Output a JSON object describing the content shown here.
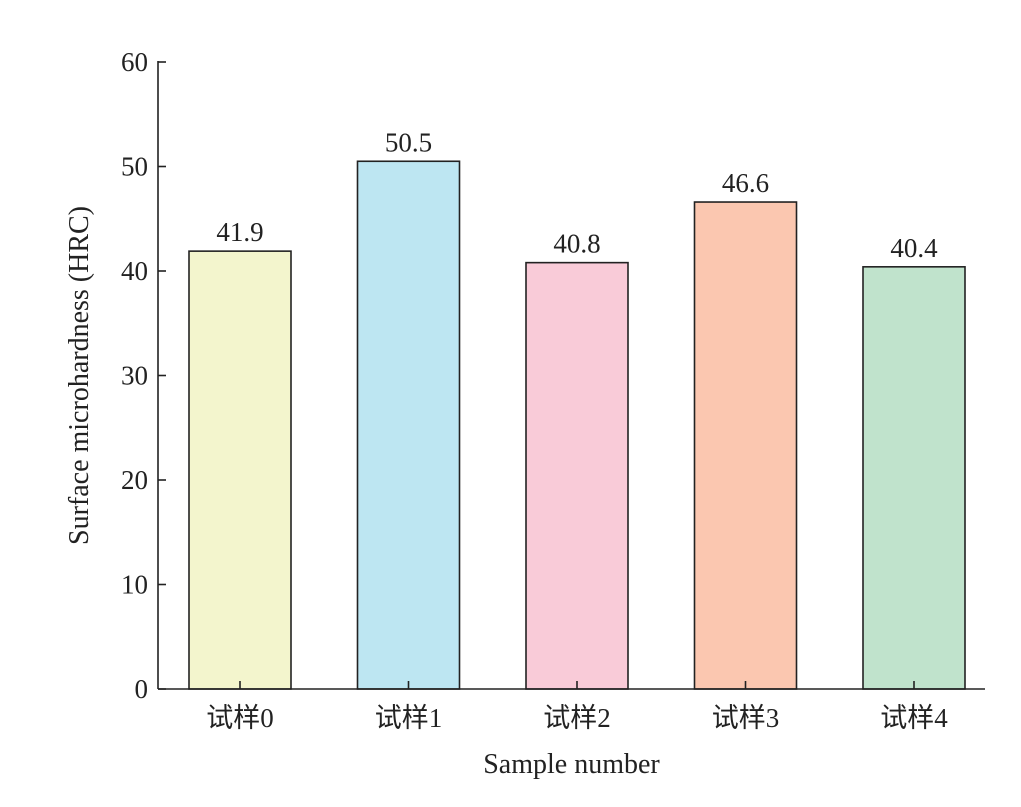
{
  "chart_data": {
    "type": "bar",
    "categories": [
      "试样0",
      "试样1",
      "试样2",
      "试样3",
      "试样4"
    ],
    "values": [
      41.9,
      50.5,
      40.8,
      46.6,
      40.4
    ],
    "data_labels": [
      "41.9",
      "50.5",
      "40.8",
      "46.6",
      "40.4"
    ],
    "colors": [
      "#f3f5cd",
      "#bde6f2",
      "#f9cbd8",
      "#fbc7b0",
      "#c0e3cc"
    ],
    "title": "",
    "xlabel": "Sample number",
    "ylabel": "Surface microhardness (HRC)",
    "ylim": [
      0,
      60
    ],
    "yticks": [
      0,
      10,
      20,
      30,
      40,
      50,
      60
    ],
    "ytick_labels": [
      "0",
      "10",
      "20",
      "30",
      "40",
      "50",
      "60"
    ],
    "grid": false,
    "legend": "none"
  }
}
